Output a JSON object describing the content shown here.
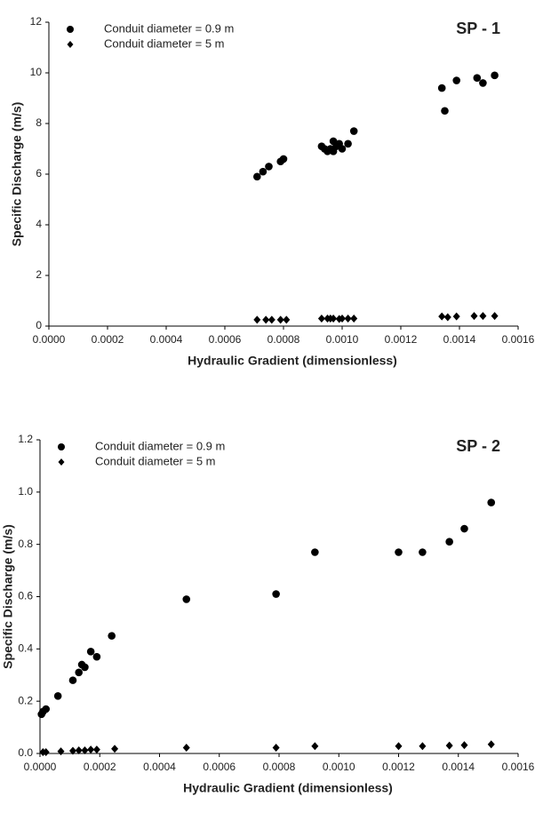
{
  "chart_data": [
    {
      "type": "scatter",
      "annotation": "SP - 1",
      "x_label": "Hydraulic Gradient (dimensionless)",
      "y_label": "Specific Discharge (m/s)",
      "xlim": [
        0,
        0.0016
      ],
      "xticks": [
        {
          "value": 0,
          "label": "0.0000"
        },
        {
          "value": 0.0002,
          "label": "0.0002"
        },
        {
          "value": 0.0004,
          "label": "0.0004"
        },
        {
          "value": 0.0006,
          "label": "0.0006"
        },
        {
          "value": 0.0008,
          "label": "0.0008"
        },
        {
          "value": 0.001,
          "label": "0.0010"
        },
        {
          "value": 0.0012,
          "label": "0.0012"
        },
        {
          "value": 0.0014,
          "label": "0.0014"
        },
        {
          "value": 0.0016,
          "label": "0.0016"
        }
      ],
      "ylim": [
        0,
        12
      ],
      "yticks": [
        0,
        2,
        4,
        6,
        8,
        10,
        12
      ],
      "series": [
        {
          "name": "Conduit diameter = 0.9 m",
          "color": "#000000",
          "marker": "circle",
          "x": [
            0.00071,
            0.00073,
            0.00075,
            0.00079,
            0.0008,
            0.00093,
            0.00094,
            0.00095,
            0.00096,
            0.00097,
            0.00097,
            0.00098,
            0.00099,
            0.001,
            0.00102,
            0.00104,
            0.00134,
            0.00135,
            0.00139,
            0.00146,
            0.00148,
            0.00152
          ],
          "values": [
            5.9,
            6.1,
            6.3,
            6.5,
            6.6,
            7.1,
            7.0,
            6.9,
            7.0,
            7.3,
            6.9,
            7.1,
            7.2,
            7.0,
            7.2,
            7.7,
            9.4,
            8.5,
            9.7,
            9.8,
            9.6,
            9.9
          ]
        },
        {
          "name": "Conduit diameter = 5 m",
          "color": "#000000",
          "marker": "diamond",
          "x": [
            0.00071,
            0.00074,
            0.00076,
            0.00079,
            0.00081,
            0.00093,
            0.00095,
            0.00096,
            0.00097,
            0.00099,
            0.001,
            0.00102,
            0.00104,
            0.00134,
            0.00136,
            0.00139,
            0.00145,
            0.00148,
            0.00152
          ],
          "values": [
            0.25,
            0.25,
            0.25,
            0.25,
            0.25,
            0.3,
            0.3,
            0.3,
            0.3,
            0.28,
            0.3,
            0.3,
            0.3,
            0.38,
            0.35,
            0.38,
            0.4,
            0.4,
            0.4
          ]
        }
      ]
    },
    {
      "type": "scatter",
      "annotation": "SP - 2",
      "x_label": "Hydraulic Gradient (dimensionless)",
      "y_label": "Specific Discharge (m/s)",
      "xlim": [
        0,
        0.0016
      ],
      "xticks": [
        {
          "value": 0,
          "label": "0.0000"
        },
        {
          "value": 0.0002,
          "label": "0.0002"
        },
        {
          "value": 0.0004,
          "label": "0.0004"
        },
        {
          "value": 0.0006,
          "label": "0.0006"
        },
        {
          "value": 0.0008,
          "label": "0.0008"
        },
        {
          "value": 0.001,
          "label": "0.0010"
        },
        {
          "value": 0.0012,
          "label": "0.0012"
        },
        {
          "value": 0.0014,
          "label": "0.0014"
        },
        {
          "value": 0.0016,
          "label": "0.0016"
        }
      ],
      "ylim": [
        0,
        1.2
      ],
      "yticks": [
        {
          "value": 0,
          "label": "0.0"
        },
        0.2,
        0.4,
        0.6,
        0.8,
        {
          "value": 1,
          "label": "1.0"
        },
        1.2
      ],
      "series": [
        {
          "name": "Conduit diameter = 0.9 m",
          "color": "#000000",
          "marker": "circle",
          "x": [
            5e-06,
            1e-05,
            2e-05,
            6e-05,
            0.00011,
            0.00013,
            0.00014,
            0.00015,
            0.00017,
            0.00019,
            0.00024,
            0.00049,
            0.00079,
            0.00092,
            0.0012,
            0.00128,
            0.00137,
            0.00142,
            0.00151
          ],
          "values": [
            0.15,
            0.16,
            0.17,
            0.22,
            0.28,
            0.31,
            0.34,
            0.33,
            0.39,
            0.37,
            0.45,
            0.59,
            0.61,
            0.77,
            0.77,
            0.77,
            0.81,
            0.86,
            0.96
          ]
        },
        {
          "name": "Conduit diameter = 5 m",
          "color": "#000000",
          "marker": "diamond",
          "x": [
            1e-05,
            2e-05,
            7e-05,
            0.00011,
            0.00013,
            0.00015,
            0.00017,
            0.00019,
            0.00025,
            0.00049,
            0.00079,
            0.00092,
            0.0012,
            0.00128,
            0.00137,
            0.00142,
            0.00151
          ],
          "values": [
            0.005,
            0.005,
            0.008,
            0.01,
            0.012,
            0.012,
            0.015,
            0.015,
            0.018,
            0.022,
            0.022,
            0.028,
            0.028,
            0.028,
            0.03,
            0.032,
            0.035
          ]
        }
      ]
    }
  ]
}
